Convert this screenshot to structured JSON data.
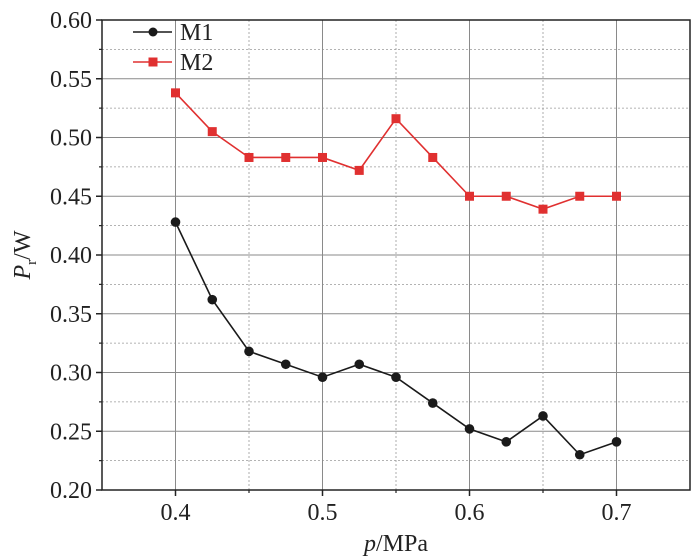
{
  "chart_data": {
    "type": "line",
    "title": "",
    "xlabel": {
      "italic": "p",
      "rest": "/MPa"
    },
    "ylabel": {
      "italic": "P",
      "sub": "r",
      "rest": "/W"
    },
    "x": [
      0.4,
      0.425,
      0.45,
      0.475,
      0.5,
      0.525,
      0.55,
      0.575,
      0.6,
      0.625,
      0.65,
      0.675,
      0.7
    ],
    "xlim": [
      0.35,
      0.75
    ],
    "ylim": [
      0.2,
      0.6
    ],
    "xticks": [
      "0.4",
      "0.5",
      "0.6",
      "0.7"
    ],
    "xtick_values": [
      0.4,
      0.5,
      0.6,
      0.7
    ],
    "yticks": [
      "0.20",
      "0.25",
      "0.30",
      "0.35",
      "0.40",
      "0.45",
      "0.50",
      "0.55",
      "0.60"
    ],
    "ytick_values": [
      0.2,
      0.25,
      0.3,
      0.35,
      0.4,
      0.45,
      0.5,
      0.55,
      0.6
    ],
    "grid": true,
    "legend_position": "top-left",
    "series": [
      {
        "name": "M1",
        "marker": "circle",
        "color": "#1a1a1a",
        "values": [
          0.428,
          0.362,
          0.318,
          0.307,
          0.296,
          0.307,
          0.296,
          0.274,
          0.252,
          0.241,
          0.263,
          0.23,
          0.241
        ]
      },
      {
        "name": "M2",
        "marker": "square",
        "color": "#e03030",
        "values": [
          0.538,
          0.505,
          0.483,
          0.483,
          0.483,
          0.472,
          0.516,
          0.483,
          0.45,
          0.45,
          0.439,
          0.45,
          0.45
        ]
      }
    ]
  }
}
